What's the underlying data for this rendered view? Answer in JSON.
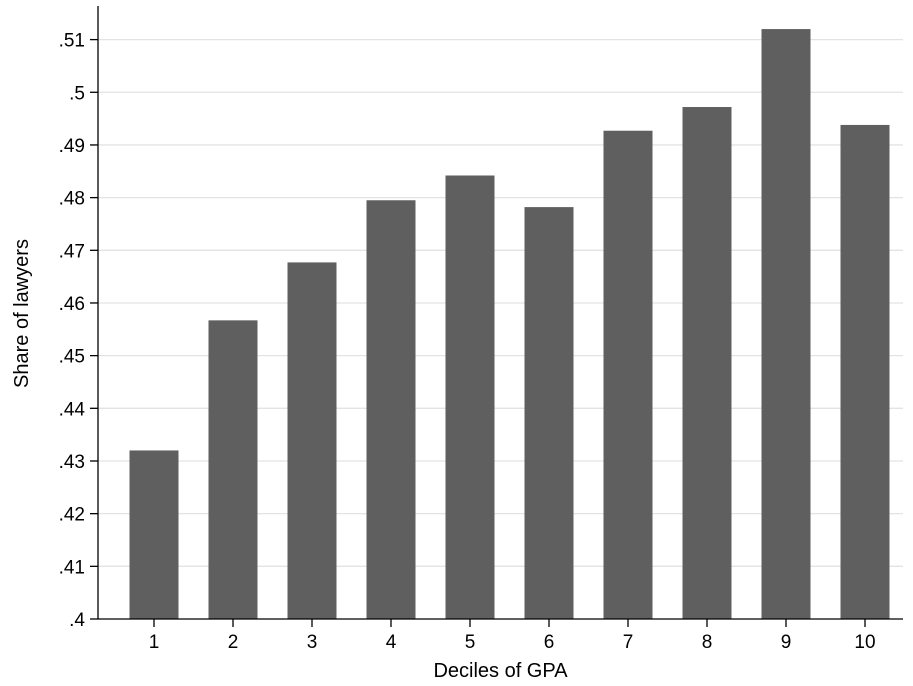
{
  "chart_data": {
    "type": "bar",
    "categories": [
      "1",
      "2",
      "3",
      "4",
      "5",
      "6",
      "7",
      "8",
      "9",
      "10"
    ],
    "values": [
      0.432,
      0.4567,
      0.4677,
      0.4795,
      0.4842,
      0.4782,
      0.4927,
      0.4972,
      0.512,
      0.4938
    ],
    "title": "",
    "xlabel": "Deciles of GPA",
    "ylabel": "Share of lawyers",
    "ylim": [
      0.4,
      0.516
    ],
    "yticks": [
      0.4,
      0.41,
      0.42,
      0.43,
      0.44,
      0.45,
      0.46,
      0.47,
      0.48,
      0.49,
      0.5,
      0.51
    ],
    "ytick_labels": [
      ".4",
      ".41",
      ".42",
      ".43",
      ".44",
      ".45",
      ".46",
      ".47",
      ".48",
      ".49",
      ".5",
      ".51"
    ],
    "grid": "horizontal",
    "legend": "none",
    "colors": {
      "bar": "#5f5f5f",
      "grid": "#e3e3e3",
      "axis": "#000000"
    }
  }
}
